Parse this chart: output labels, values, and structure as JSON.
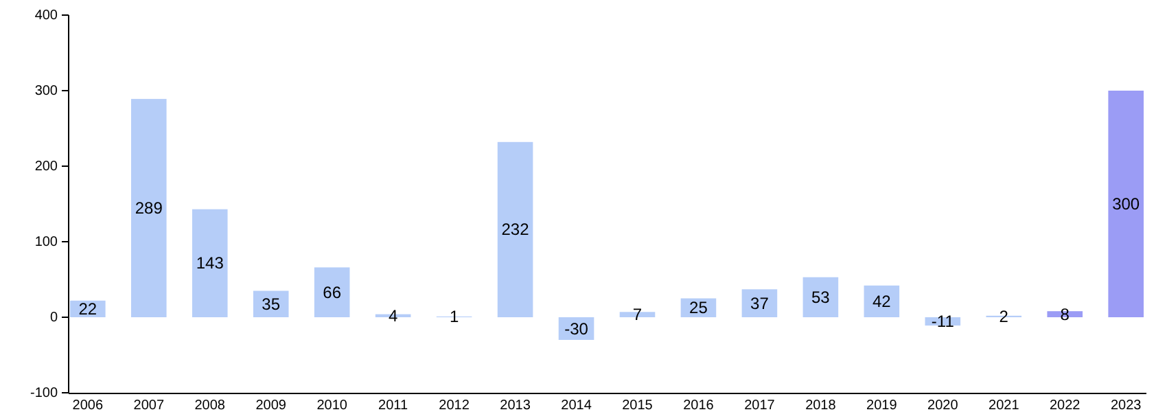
{
  "chart_data": {
    "type": "bar",
    "categories": [
      "2006",
      "2007",
      "2008",
      "2009",
      "2010",
      "2011",
      "2012",
      "2013",
      "2014",
      "2015",
      "2016",
      "2017",
      "2018",
      "2019",
      "2020",
      "2021",
      "2022",
      "2023"
    ],
    "values": [
      22,
      289,
      143,
      35,
      66,
      4,
      1,
      232,
      -30,
      7,
      25,
      37,
      53,
      42,
      -11,
      2,
      8,
      300
    ],
    "colors": [
      "#b5cdf8",
      "#b5cdf8",
      "#b5cdf8",
      "#b5cdf8",
      "#b5cdf8",
      "#b5cdf8",
      "#b5cdf8",
      "#b5cdf8",
      "#b5cdf8",
      "#b5cdf8",
      "#b5cdf8",
      "#b5cdf8",
      "#b5cdf8",
      "#b5cdf8",
      "#b5cdf8",
      "#b5cdf8",
      "#9b9cf5",
      "#9b9cf5"
    ],
    "ylim": [
      -100,
      400
    ],
    "yticks": [
      -100,
      0,
      100,
      200,
      300,
      400
    ],
    "data_labels": true,
    "grid": false
  }
}
